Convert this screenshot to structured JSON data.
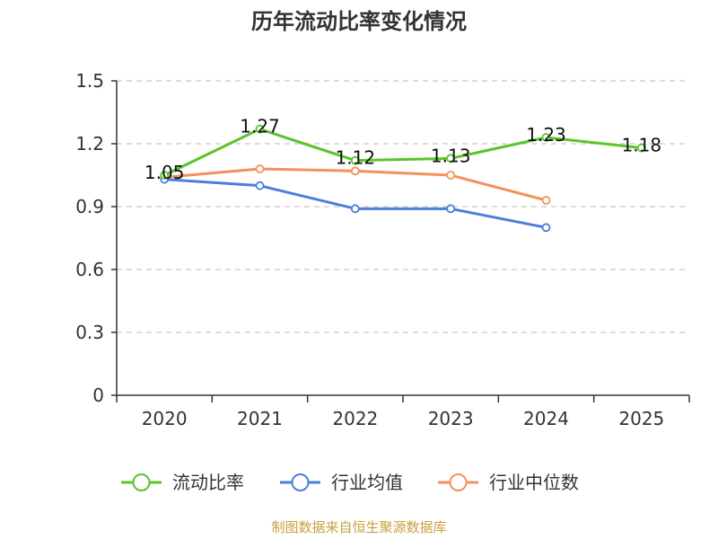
{
  "chart_data": {
    "type": "line",
    "title": "历年流动比率变化情况",
    "categories": [
      "2020",
      "2021",
      "2022",
      "2023",
      "2024",
      "2025"
    ],
    "ylim": [
      0,
      1.5
    ],
    "yticks": [
      "0",
      "0.3",
      "0.6",
      "0.9",
      "1.2",
      "1.5"
    ],
    "grid": true,
    "legend_position": "bottom",
    "series": [
      {
        "name": "流动比率",
        "color": "#5bc42a",
        "values": [
          1.05,
          1.27,
          1.12,
          1.13,
          1.23,
          1.18
        ],
        "labels": [
          "1.05",
          "1.27",
          "1.12",
          "1.13",
          "1.23",
          "1.18"
        ]
      },
      {
        "name": "行业均值",
        "color": "#4a7fdc",
        "values": [
          1.03,
          1.0,
          0.89,
          0.89,
          0.8,
          null
        ]
      },
      {
        "name": "行业中位数",
        "color": "#f3915c",
        "values": [
          1.04,
          1.08,
          1.07,
          1.05,
          0.93,
          null
        ]
      }
    ]
  },
  "source_text": "制图数据来自恒生聚源数据库",
  "source_color": "#c8a03c"
}
